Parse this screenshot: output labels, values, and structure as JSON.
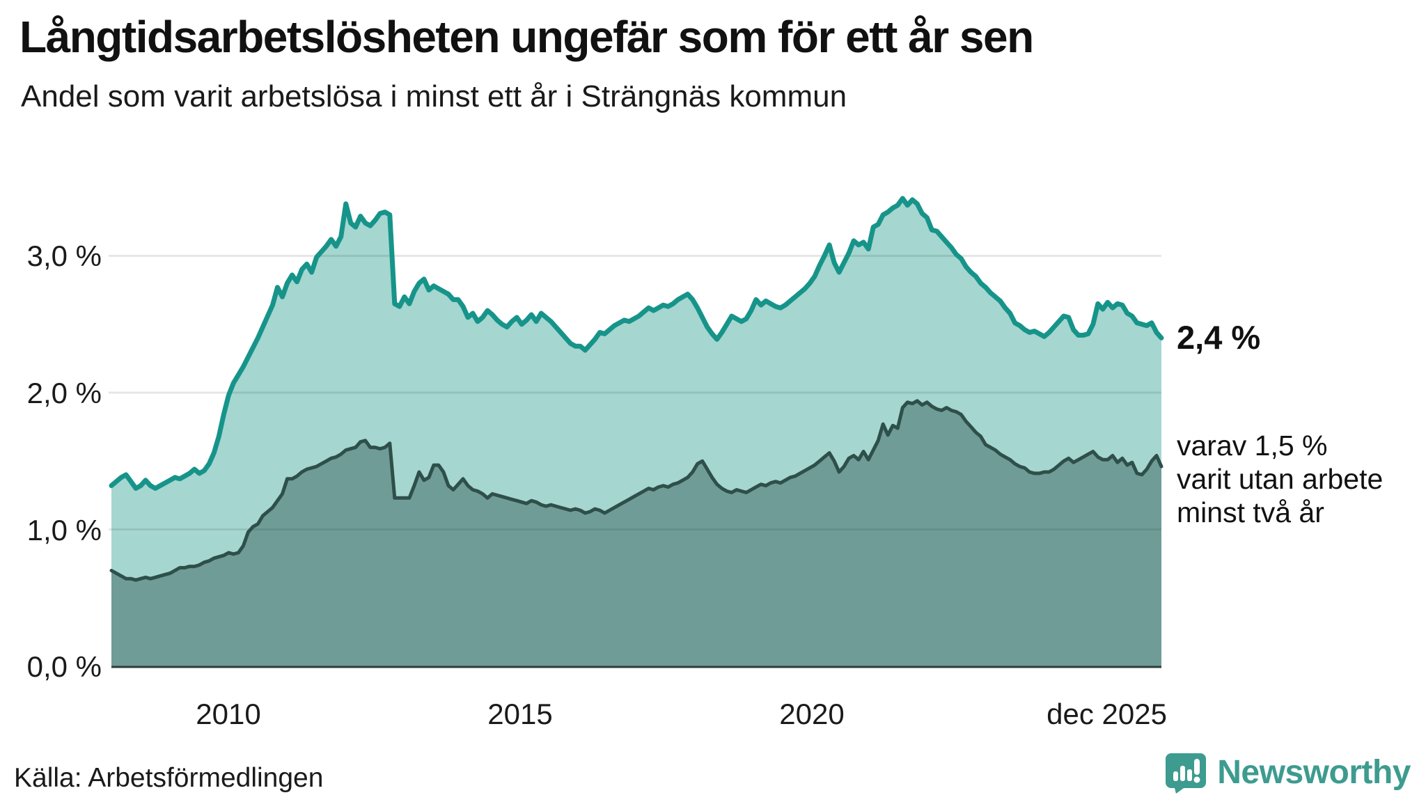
{
  "header": {
    "title": "Långtidsarbetslösheten ungefär som för ett år sen",
    "subtitle": "Andel som varit arbetslösa i minst ett år i Strängnäs kommun"
  },
  "annotations": {
    "last_value_label": "2,4 %",
    "secondary_label_lines": [
      "varav 1,5 %",
      "varit utan arbete",
      "minst två år"
    ]
  },
  "footer": {
    "source": "Källa: Arbetsförmedlingen",
    "brand": "Newsworthy"
  },
  "colors": {
    "line_one_year": "#17948a",
    "fill_one_year": "#a5d6d0",
    "line_two_years": "#2f4f4b",
    "fill_two_years": "#6f9c96",
    "gridline": "#e3e3e5",
    "axis_line": "#2e3c39",
    "text": "#1a1a1a",
    "brand_teal": "#3d9b8f"
  },
  "chart_data": {
    "type": "area",
    "title": "Långtidsarbetslösheten ungefär som för ett år sen",
    "subtitle": "Andel som varit arbetslösa i minst ett år i Strängnäs kommun",
    "unit": "%",
    "x_monthly_from": "2008-01",
    "x_monthly_to": "2025-12",
    "ylim": [
      0,
      3.6
    ],
    "grid": true,
    "legend_position": "right-edge-annotations",
    "y_ticks": [
      {
        "label": "3,0 %",
        "value": 3.0
      },
      {
        "label": "2,0 %",
        "value": 2.0
      },
      {
        "label": "1,0 %",
        "value": 1.0
      },
      {
        "label": "0,0 %",
        "value": 0.0
      }
    ],
    "x_ticks": [
      {
        "label": "2010",
        "year": 2010.0
      },
      {
        "label": "2015",
        "year": 2015.0
      },
      {
        "label": "2020",
        "year": 2020.0
      },
      {
        "label": "dec 2025",
        "year": 2025.92
      }
    ],
    "series": [
      {
        "name": "Andel som varit arbetslösa minst ett år",
        "line_color": "#17948a",
        "fill_color": "#a5d6d0",
        "last_value": 2.4,
        "values": [
          1.32,
          1.35,
          1.38,
          1.4,
          1.35,
          1.3,
          1.32,
          1.36,
          1.32,
          1.3,
          1.32,
          1.34,
          1.36,
          1.38,
          1.37,
          1.39,
          1.41,
          1.44,
          1.41,
          1.43,
          1.48,
          1.56,
          1.68,
          1.84,
          1.98,
          2.07,
          2.13,
          2.19,
          2.26,
          2.33,
          2.4,
          2.48,
          2.56,
          2.64,
          2.77,
          2.7,
          2.8,
          2.86,
          2.81,
          2.9,
          2.94,
          2.88,
          2.99,
          3.03,
          3.07,
          3.12,
          3.07,
          3.14,
          3.38,
          3.24,
          3.21,
          3.29,
          3.24,
          3.22,
          3.26,
          3.31,
          3.32,
          3.3,
          2.65,
          2.63,
          2.7,
          2.65,
          2.74,
          2.8,
          2.83,
          2.75,
          2.78,
          2.76,
          2.74,
          2.72,
          2.68,
          2.68,
          2.63,
          2.55,
          2.58,
          2.52,
          2.55,
          2.6,
          2.57,
          2.53,
          2.5,
          2.48,
          2.52,
          2.55,
          2.5,
          2.53,
          2.57,
          2.52,
          2.58,
          2.55,
          2.52,
          2.48,
          2.44,
          2.4,
          2.36,
          2.34,
          2.34,
          2.31,
          2.35,
          2.39,
          2.44,
          2.43,
          2.46,
          2.49,
          2.51,
          2.53,
          2.52,
          2.54,
          2.56,
          2.59,
          2.62,
          2.6,
          2.62,
          2.64,
          2.63,
          2.65,
          2.68,
          2.7,
          2.72,
          2.68,
          2.62,
          2.55,
          2.48,
          2.43,
          2.39,
          2.44,
          2.5,
          2.56,
          2.54,
          2.52,
          2.54,
          2.6,
          2.68,
          2.64,
          2.67,
          2.65,
          2.63,
          2.62,
          2.64,
          2.67,
          2.7,
          2.73,
          2.76,
          2.8,
          2.85,
          2.93,
          3.0,
          3.08,
          2.95,
          2.88,
          2.95,
          3.02,
          3.11,
          3.08,
          3.1,
          3.05,
          3.21,
          3.23,
          3.3,
          3.32,
          3.35,
          3.37,
          3.42,
          3.37,
          3.41,
          3.38,
          3.31,
          3.28,
          3.19,
          3.18,
          3.14,
          3.1,
          3.06,
          3.01,
          2.98,
          2.92,
          2.88,
          2.85,
          2.8,
          2.77,
          2.73,
          2.7,
          2.67,
          2.62,
          2.58,
          2.51,
          2.49,
          2.46,
          2.44,
          2.45,
          2.43,
          2.41,
          2.44,
          2.48,
          2.52,
          2.56,
          2.55,
          2.46,
          2.42,
          2.42,
          2.43,
          2.5,
          2.65,
          2.61,
          2.66,
          2.62,
          2.65,
          2.64,
          2.58,
          2.56,
          2.51,
          2.5,
          2.49,
          2.51,
          2.44,
          2.4
        ]
      },
      {
        "name": "varav arbetslösa minst två år",
        "line_color": "#2f4f4b",
        "fill_color": "#6f9c96",
        "last_value": 1.5,
        "values": [
          0.7,
          0.68,
          0.66,
          0.64,
          0.64,
          0.63,
          0.64,
          0.65,
          0.64,
          0.65,
          0.66,
          0.67,
          0.68,
          0.7,
          0.72,
          0.72,
          0.73,
          0.73,
          0.74,
          0.76,
          0.77,
          0.79,
          0.8,
          0.81,
          0.83,
          0.82,
          0.83,
          0.88,
          0.98,
          1.02,
          1.04,
          1.1,
          1.13,
          1.16,
          1.21,
          1.26,
          1.37,
          1.37,
          1.39,
          1.42,
          1.44,
          1.45,
          1.46,
          1.48,
          1.5,
          1.52,
          1.53,
          1.55,
          1.58,
          1.59,
          1.6,
          1.64,
          1.65,
          1.6,
          1.6,
          1.59,
          1.6,
          1.63,
          1.23,
          1.23,
          1.23,
          1.23,
          1.32,
          1.42,
          1.36,
          1.38,
          1.47,
          1.47,
          1.42,
          1.32,
          1.29,
          1.33,
          1.37,
          1.32,
          1.29,
          1.28,
          1.26,
          1.23,
          1.26,
          1.25,
          1.24,
          1.23,
          1.22,
          1.21,
          1.2,
          1.19,
          1.21,
          1.2,
          1.18,
          1.17,
          1.18,
          1.17,
          1.16,
          1.15,
          1.14,
          1.15,
          1.14,
          1.12,
          1.13,
          1.15,
          1.14,
          1.12,
          1.14,
          1.16,
          1.18,
          1.2,
          1.22,
          1.24,
          1.26,
          1.28,
          1.3,
          1.29,
          1.31,
          1.32,
          1.31,
          1.33,
          1.34,
          1.36,
          1.38,
          1.42,
          1.48,
          1.5,
          1.44,
          1.38,
          1.33,
          1.3,
          1.28,
          1.27,
          1.29,
          1.28,
          1.27,
          1.29,
          1.31,
          1.33,
          1.32,
          1.34,
          1.35,
          1.34,
          1.36,
          1.38,
          1.39,
          1.41,
          1.43,
          1.45,
          1.47,
          1.5,
          1.53,
          1.56,
          1.5,
          1.42,
          1.46,
          1.52,
          1.54,
          1.51,
          1.57,
          1.51,
          1.58,
          1.65,
          1.77,
          1.69,
          1.76,
          1.74,
          1.89,
          1.93,
          1.92,
          1.94,
          1.91,
          1.93,
          1.9,
          1.88,
          1.87,
          1.89,
          1.87,
          1.86,
          1.84,
          1.79,
          1.75,
          1.71,
          1.68,
          1.62,
          1.6,
          1.58,
          1.55,
          1.53,
          1.51,
          1.48,
          1.46,
          1.45,
          1.42,
          1.41,
          1.41,
          1.42,
          1.42,
          1.44,
          1.47,
          1.5,
          1.52,
          1.49,
          1.51,
          1.53,
          1.55,
          1.57,
          1.53,
          1.51,
          1.51,
          1.54,
          1.49,
          1.52,
          1.47,
          1.49,
          1.41,
          1.4,
          1.44,
          1.5,
          1.54,
          1.46
        ]
      }
    ]
  }
}
